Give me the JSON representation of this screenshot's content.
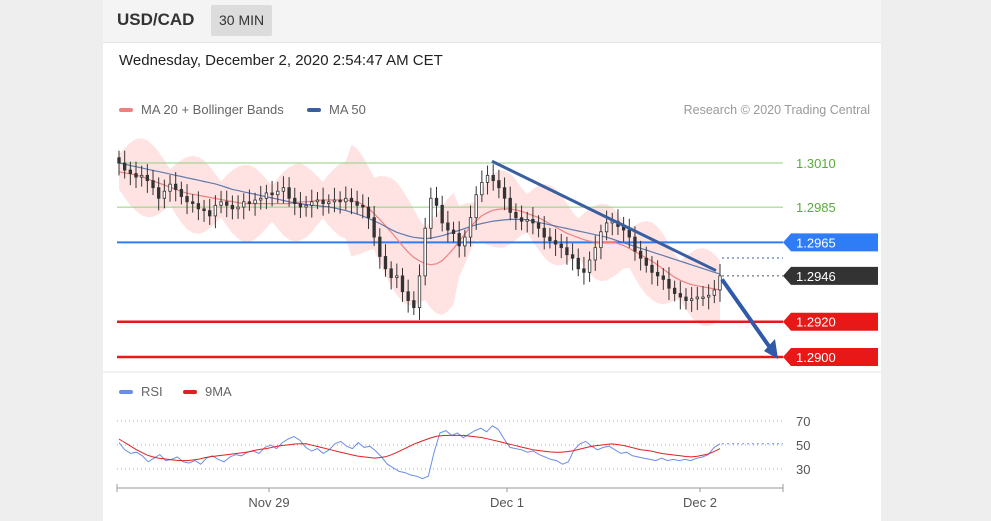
{
  "header": {
    "symbol": "USD/CAD",
    "timeframe": "30 MIN"
  },
  "datetime": "Wednesday, December 2, 2020 2:54:47 AM CET",
  "legend": {
    "ma20": "MA 20 + Bollinger Bands",
    "ma50": "MA 50",
    "rsi": "RSI",
    "ma9": "9MA"
  },
  "credit": "Research © 2020 Trading Central",
  "colors": {
    "ma20": "#f08080",
    "ma50": "#3a5fa0",
    "bands": "#ffdcdc",
    "rsi": "#6a8ee8",
    "ma9": "#e02020",
    "support": "#e81818",
    "resistance_green": "#8fd07a",
    "pivot": "#2f7df6",
    "current": "#333333",
    "arrow": "#2e5aa8",
    "candle": "#333333"
  },
  "chart_data": [
    {
      "type": "candlestick",
      "x_ticks": [
        "Nov 29",
        "Dec 1",
        "Dec 2"
      ],
      "ylim": [
        1.2897,
        1.3028
      ],
      "levels": [
        {
          "value": 1.301,
          "label": "1.3010",
          "kind": "resistance"
        },
        {
          "value": 1.2985,
          "label": "1.2985",
          "kind": "resistance"
        },
        {
          "value": 1.2965,
          "label": "1.2965",
          "kind": "pivot"
        },
        {
          "value": 1.2946,
          "label": "1.2946",
          "kind": "current"
        },
        {
          "value": 1.292,
          "label": "1.2920",
          "kind": "support"
        },
        {
          "value": 1.29,
          "label": "1.2900",
          "kind": "support"
        }
      ],
      "close_series": [
        1.301,
        1.3006,
        1.3004,
        1.3002,
        1.3003,
        1.3,
        1.2996,
        1.299,
        1.2994,
        1.2998,
        1.2995,
        1.2991,
        1.2988,
        1.2987,
        1.2984,
        1.2983,
        1.298,
        1.2986,
        1.2988,
        1.2986,
        1.2984,
        1.2985,
        1.2988,
        1.2987,
        1.2989,
        1.299,
        1.2993,
        1.2992,
        1.2994,
        1.2996,
        1.299,
        1.2987,
        1.2985,
        1.2986,
        1.2988,
        1.2989,
        1.2987,
        1.2988,
        1.2989,
        1.2988,
        1.299,
        1.2988,
        1.2986,
        1.2985,
        1.2979,
        1.2968,
        1.2957,
        1.295,
        1.2945,
        1.2946,
        1.2937,
        1.2932,
        1.2928,
        1.2946,
        1.2973,
        1.299,
        1.2986,
        1.2976,
        1.2972,
        1.297,
        1.2963,
        1.2968,
        1.2979,
        1.2992,
        1.2999,
        1.3003,
        1.3,
        1.2996,
        1.299,
        1.2982,
        1.2979,
        1.2977,
        1.2978,
        1.2976,
        1.2973,
        1.2968,
        1.2966,
        1.2964,
        1.2962,
        1.2958,
        1.2956,
        1.295,
        1.2948,
        1.2955,
        1.2962,
        1.2971,
        1.2976,
        1.2977,
        1.2974,
        1.2972,
        1.2968,
        1.296,
        1.2956,
        1.2952,
        1.2948,
        1.2946,
        1.2944,
        1.2939,
        1.2936,
        1.2934,
        1.2932,
        1.2933,
        1.2934,
        1.2934,
        1.2935,
        1.2938,
        1.2946
      ],
      "ma20_series": [
        1.3005,
        1.3004,
        1.3003,
        1.3001,
        1.2999,
        1.2997,
        1.2995,
        1.2993,
        1.2992,
        1.2991,
        1.299,
        1.2989,
        1.2988,
        1.2987,
        1.2987,
        1.2987,
        1.2987,
        1.2987,
        1.2987,
        1.2988,
        1.2988,
        1.2989,
        1.2989,
        1.2989,
        1.2989,
        1.2988,
        1.2985,
        1.298,
        1.2974,
        1.2968,
        1.2961,
        1.2956,
        1.2953,
        1.2952,
        1.2955,
        1.2961,
        1.2968,
        1.2975,
        1.298,
        1.2983,
        1.2984,
        1.2984,
        1.2983,
        1.2981,
        1.2979,
        1.2976,
        1.2973,
        1.297,
        1.2968,
        1.2966,
        1.2965,
        1.2965,
        1.2965,
        1.2963,
        1.296,
        1.2957,
        1.2954,
        1.295,
        1.2946,
        1.2943,
        1.2941,
        1.294,
        1.2939,
        1.2938
      ],
      "ma50_series": [
        1.301,
        1.3008,
        1.3006,
        1.3004,
        1.3002,
        1.3,
        1.2998,
        1.2995,
        1.2993,
        1.2991,
        1.2989,
        1.2987,
        1.2986,
        1.2985,
        1.2983,
        1.298,
        1.2976,
        1.2971,
        1.2968,
        1.2967,
        1.2969,
        1.2972,
        1.2975,
        1.2977,
        1.2978,
        1.2978,
        1.2976,
        1.2974,
        1.2972,
        1.297,
        1.2968,
        1.2965,
        1.2962,
        1.2959,
        1.2956,
        1.2953,
        1.295,
        1.2947
      ],
      "trendline": {
        "from": 1.3011,
        "to": 1.2949
      },
      "forecast_target": 1.29
    },
    {
      "type": "line",
      "name": "RSI",
      "ylim": [
        17,
        80
      ],
      "y_ticks": [
        "70",
        "50",
        "30"
      ],
      "tick_values": [
        70,
        50,
        30
      ],
      "rsi_series": [
        52,
        46,
        43,
        44,
        41,
        36,
        39,
        42,
        37,
        38,
        40,
        36,
        35,
        37,
        34,
        39,
        41,
        38,
        36,
        40,
        42,
        41,
        44,
        45,
        43,
        48,
        50,
        47,
        52,
        55,
        57,
        54,
        48,
        45,
        47,
        43,
        46,
        51,
        53,
        49,
        47,
        52,
        48,
        49,
        45,
        40,
        34,
        31,
        28,
        27,
        25,
        24,
        22,
        24,
        44,
        60,
        62,
        58,
        60,
        56,
        59,
        62,
        64,
        61,
        66,
        63,
        55,
        48,
        47,
        46,
        44,
        45,
        42,
        40,
        38,
        37,
        34,
        36,
        46,
        51,
        53,
        49,
        46,
        48,
        49,
        46,
        43,
        44,
        41,
        40,
        39,
        38,
        37,
        39,
        37,
        38,
        37,
        38,
        37,
        39,
        40,
        42,
        48,
        51
      ],
      "ma9_series": [
        55,
        50,
        45,
        41,
        39,
        38,
        37,
        37,
        38,
        40,
        41,
        42,
        43,
        44,
        46,
        47,
        49,
        50,
        51,
        51,
        49,
        47,
        45,
        43,
        41,
        40,
        39,
        40,
        43,
        47,
        51,
        54,
        57,
        58,
        58,
        58,
        57,
        56,
        54,
        52,
        50,
        48,
        46,
        45,
        44,
        44,
        45,
        47,
        49,
        50,
        51,
        50,
        48,
        46,
        45,
        43,
        42,
        41,
        40,
        41,
        43,
        47
      ],
      "current": 51
    }
  ]
}
